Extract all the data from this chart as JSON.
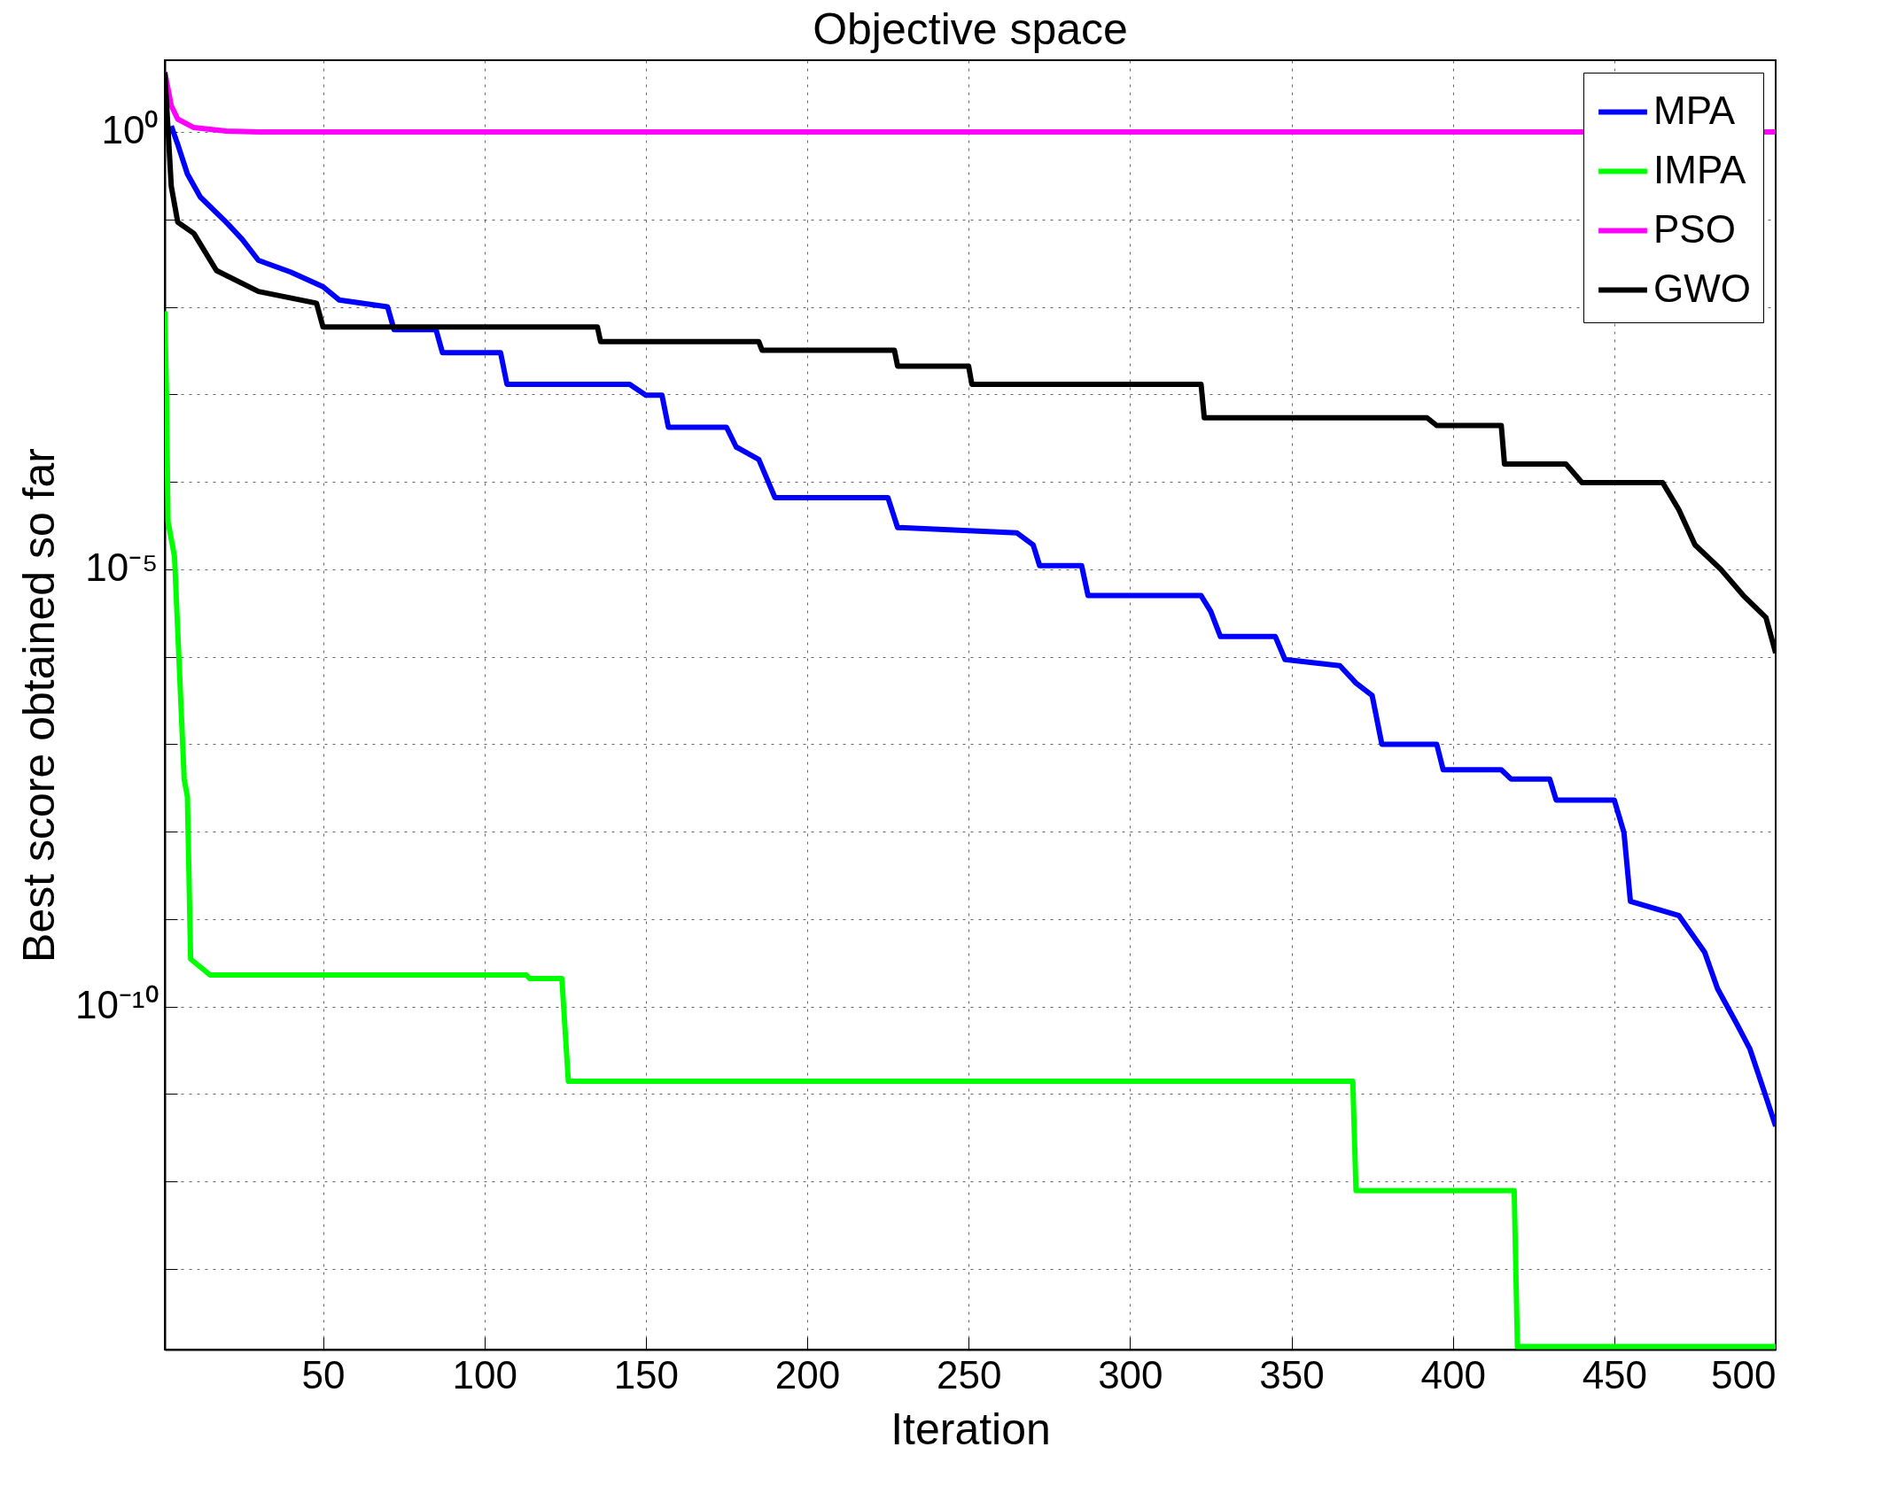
{
  "chart_data": {
    "type": "line",
    "title": "Objective space",
    "xlabel": "Iteration",
    "ylabel": "Best score obtained so far",
    "log": "y",
    "grid": true,
    "legend": "top right",
    "xlim": [
      1,
      500
    ],
    "xticks": [
      50,
      100,
      150,
      200,
      250,
      300,
      350,
      400,
      450,
      500
    ],
    "ylim": [
      1.2e-14,
      6.6
    ],
    "yticks": [
      {
        "value": 1,
        "label": "10⁰"
      },
      {
        "value": 0.1,
        "label": null
      },
      {
        "value": 0.01,
        "label": null
      },
      {
        "value": 0.001,
        "label": null
      },
      {
        "value": 0.0001,
        "label": null
      },
      {
        "value": 1e-05,
        "label": "10⁻⁵"
      },
      {
        "value": 1e-06,
        "label": null
      },
      {
        "value": 1e-07,
        "label": null
      },
      {
        "value": 1e-08,
        "label": null
      },
      {
        "value": 1e-09,
        "label": null
      },
      {
        "value": 1e-10,
        "label": "10⁻¹⁰"
      },
      {
        "value": 1e-11,
        "label": null
      },
      {
        "value": 1e-12,
        "label": null
      },
      {
        "value": 1e-13,
        "label": null
      }
    ],
    "series": [
      {
        "name": "MPA",
        "color": "#0000ff",
        "x": [
          3,
          5,
          8,
          12,
          20,
          25,
          30,
          40,
          50,
          55,
          70,
          72,
          85,
          87,
          105,
          107,
          145,
          150,
          155,
          157,
          175,
          178,
          185,
          190,
          225,
          228,
          265,
          270,
          272,
          285,
          287,
          322,
          325,
          328,
          345,
          348,
          365,
          370,
          375,
          378,
          395,
          397,
          415,
          418,
          430,
          432,
          450,
          453,
          455,
          470,
          478,
          482,
          488,
          492,
          497,
          500
        ],
        "values": [
          1.17,
          0.72,
          0.33,
          0.18,
          0.093,
          0.059,
          0.034,
          0.025,
          0.017,
          0.012,
          0.01,
          0.0055,
          0.0055,
          0.003,
          0.003,
          0.0013,
          0.0013,
          0.00098,
          0.00098,
          0.00042,
          0.00042,
          0.00025,
          0.00018,
          6.6e-05,
          6.6e-05,
          3e-05,
          2.6e-05,
          1.9e-05,
          1.1e-05,
          1.1e-05,
          5e-06,
          5e-06,
          3.3e-06,
          1.7e-06,
          1.7e-06,
          9.3e-07,
          7.9e-07,
          5e-07,
          3.6e-07,
          1e-07,
          1e-07,
          5.1e-08,
          5.1e-08,
          4e-08,
          4e-08,
          2.3e-08,
          2.3e-08,
          9.8e-09,
          1.6e-09,
          1.1e-09,
          4.2e-10,
          1.6e-10,
          6.3e-11,
          3.3e-11,
          9.3e-12,
          4.3e-12
        ]
      },
      {
        "name": "IMPA",
        "color": "#00ff00",
        "x": [
          1,
          1.5,
          2,
          4,
          7,
          8,
          9,
          15,
          113,
          114,
          124,
          126,
          369,
          370,
          419,
          420,
          500
        ],
        "values": [
          0.0089,
          0.0011,
          3.5e-05,
          1.4e-05,
          4e-08,
          2.5e-08,
          3.5e-10,
          2.3e-10,
          2.3e-10,
          2.1e-10,
          2.1e-10,
          1.4e-11,
          1.4e-11,
          7.9e-13,
          7.9e-13,
          1.3e-14,
          1.3e-14
        ]
      },
      {
        "name": "PSO",
        "color": "#ff00ff",
        "x": [
          1,
          3,
          5,
          10,
          20,
          30,
          500
        ],
        "values": [
          4.8,
          2.0,
          1.4,
          1.12,
          1.02,
          1.0,
          1.0
        ]
      },
      {
        "name": "GWO",
        "color": "#000000",
        "x": [
          1,
          3,
          5,
          10,
          17,
          30,
          48,
          50,
          135,
          136,
          185,
          186,
          227,
          228,
          250,
          251,
          322,
          323,
          392,
          395,
          415,
          416,
          435,
          440,
          465,
          470,
          475,
          483,
          490,
          497,
          500
        ],
        "values": [
          4.8,
          0.24,
          0.093,
          0.069,
          0.026,
          0.015,
          0.011,
          0.0059,
          0.0059,
          0.004,
          0.004,
          0.0032,
          0.0032,
          0.0021,
          0.0021,
          0.0013,
          0.0013,
          0.00054,
          0.00054,
          0.00044,
          0.00044,
          0.00016,
          0.00016,
          9.8e-05,
          9.8e-05,
          4.8e-05,
          1.9e-05,
          1e-05,
          5e-06,
          2.8e-06,
          1.1e-06
        ]
      }
    ]
  }
}
